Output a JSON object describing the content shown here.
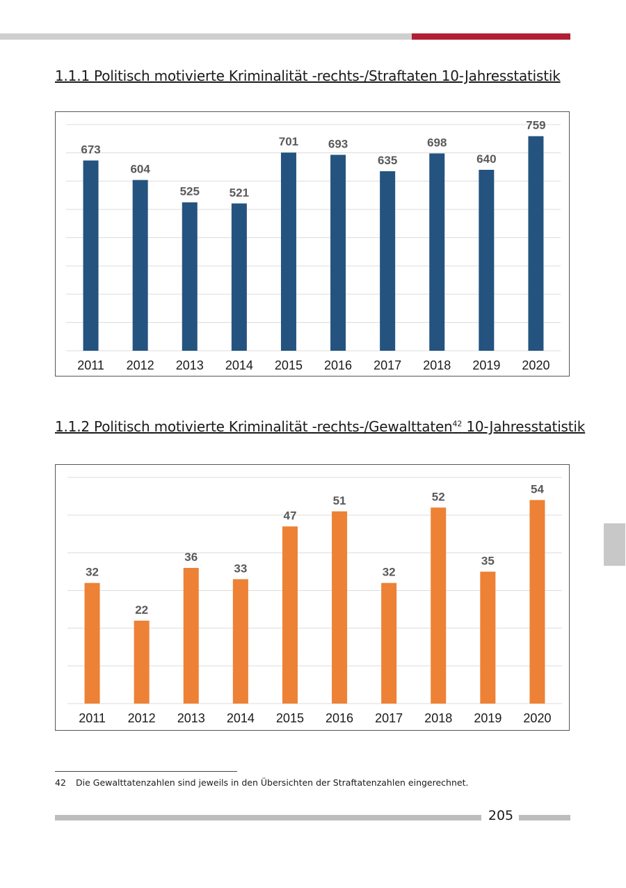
{
  "headings": {
    "h1": "1.1.1 Politisch motivierte Kriminalität -rechts-/Straftaten 10-Jahresstatistik",
    "h2_main": "1.1.2 Politisch motivierte Kriminalität -rechts-/Gewalttaten",
    "h2_sup": "42",
    "h2_tail": " 10-Jahresstatistik"
  },
  "footnote": {
    "number": "42",
    "text": "Die Gewalttatenzahlen sind jeweils in den Übersichten der Straftatenzahlen eingerechnet."
  },
  "page_number": "205",
  "chart_data": [
    {
      "type": "bar",
      "categories": [
        "2011",
        "2012",
        "2013",
        "2014",
        "2015",
        "2016",
        "2017",
        "2018",
        "2019",
        "2020"
      ],
      "values": [
        673,
        604,
        525,
        521,
        701,
        693,
        635,
        698,
        640,
        759
      ],
      "color": "#24537f",
      "ylim": [
        0,
        800
      ],
      "grid": true,
      "title": "",
      "xlabel": "",
      "ylabel": ""
    },
    {
      "type": "bar",
      "categories": [
        "2011",
        "2012",
        "2013",
        "2014",
        "2015",
        "2016",
        "2017",
        "2018",
        "2019",
        "2020"
      ],
      "values": [
        32,
        22,
        36,
        33,
        47,
        51,
        32,
        52,
        35,
        54
      ],
      "color": "#ed8135",
      "ylim": [
        0,
        60
      ],
      "grid": true,
      "title": "",
      "xlabel": "",
      "ylabel": ""
    }
  ]
}
